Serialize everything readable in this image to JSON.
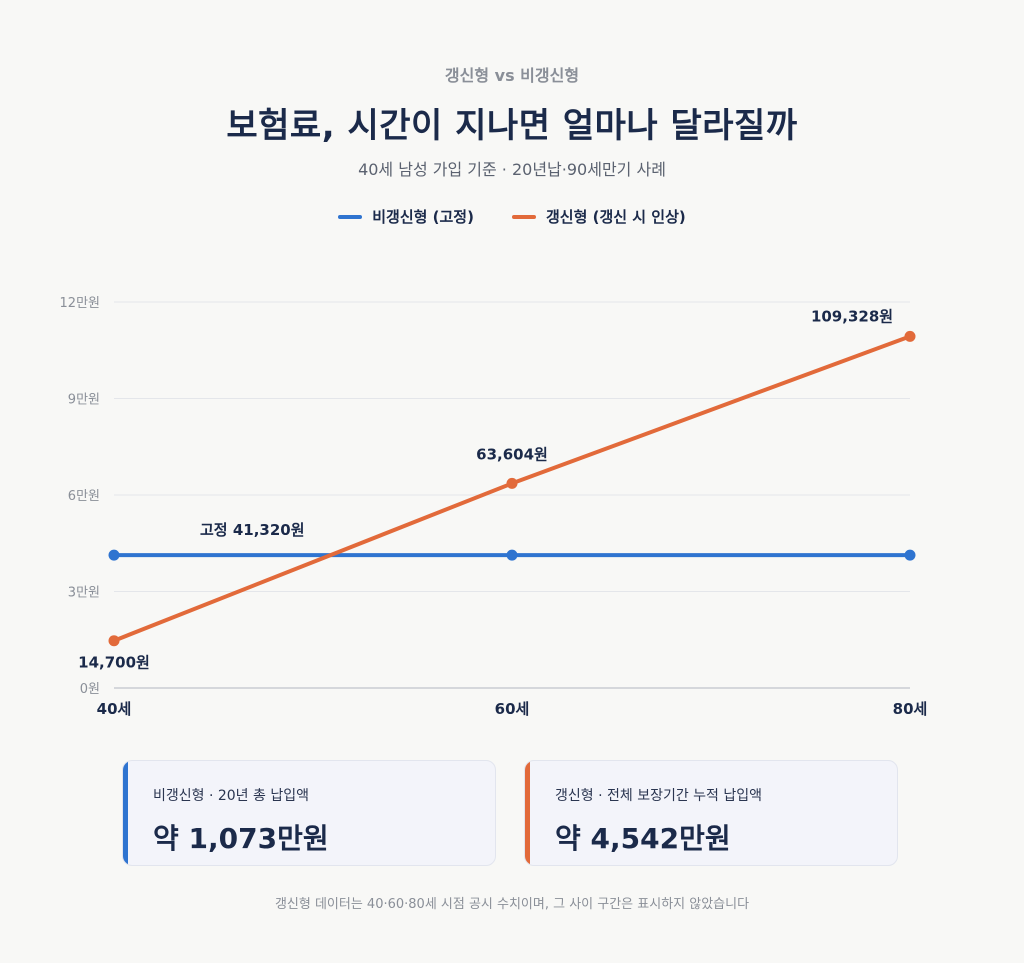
{
  "header": {
    "eyebrow": "갱신형 vs 비갱신형",
    "title": "보험료, 시간이 지나면 얼마나 달라질까",
    "subtitle": "40세 남성 가입 기준 · 20년납·90세만기 사례"
  },
  "legend": [
    {
      "label": "비갱신형 (고정)",
      "color": "#2f74d0"
    },
    {
      "label": "갱신형 (갱신 시 인상)",
      "color": "#e26a3a"
    }
  ],
  "chart_data": {
    "type": "line",
    "title": "보험료, 시간이 지나면 얼마나 달라질까",
    "x": [
      "40세",
      "60세",
      "80세"
    ],
    "y_ticks": [
      {
        "value": 0,
        "label": "0원"
      },
      {
        "value": 30000,
        "label": "3만원"
      },
      {
        "value": 60000,
        "label": "6만원"
      },
      {
        "value": 90000,
        "label": "9만원"
      },
      {
        "value": 120000,
        "label": "12만원"
      }
    ],
    "ylim": [
      0,
      120000
    ],
    "grid": true,
    "legend_position": "top",
    "series": [
      {
        "name": "비갱신형 (고정)",
        "color": "#2f74d0",
        "values": [
          41320,
          41320,
          41320
        ]
      },
      {
        "name": "갱신형 (갱신 시 인상)",
        "color": "#e26a3a",
        "values": [
          14700,
          63604,
          109328
        ]
      }
    ],
    "annotations": {
      "fixed": "고정 41,320원",
      "renewal": [
        "14,700원",
        "63,604원",
        "109,328원"
      ]
    }
  },
  "cards": [
    {
      "label": "비갱신형 · 20년 총 납입액",
      "value": "약 1,073만원",
      "color": "#2f74d0"
    },
    {
      "label": "갱신형 · 전체 보장기간 누적 납입액",
      "value": "약 4,542만원",
      "color": "#e26a3a"
    }
  ],
  "footnote": "갱신형 데이터는 40·60·80세 시점 공시 수치이며, 그 사이 구간은 표시하지 않았습니다"
}
